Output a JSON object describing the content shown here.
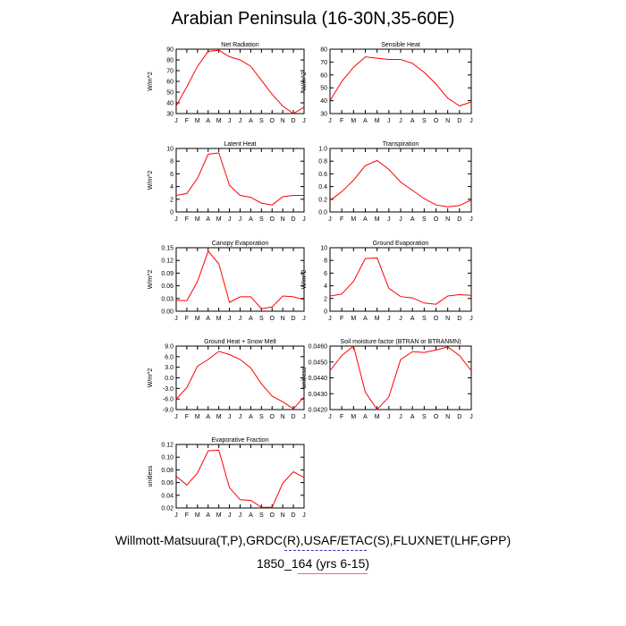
{
  "title": "Arabian Peninsula (16-30N,35-60E)",
  "caption_sources": "Willmott-Matsuura(T,P),GRDC(R),USAF/ETAC(S),FLUXNET(LHF,GPP)",
  "caption_case": "1850_164 (yrs 6-15)",
  "colors": {
    "line": "#ff0000",
    "axis": "#000000",
    "deco_blue": "#3333aa",
    "deco_red": "#ff6666"
  },
  "chart_data": [
    {
      "type": "line",
      "title": "Net Radiation",
      "ylabel": "W/m^2",
      "categories": [
        "J",
        "F",
        "M",
        "A",
        "M",
        "J",
        "J",
        "A",
        "S",
        "O",
        "N",
        "D",
        "J"
      ],
      "ylim": [
        30,
        90
      ],
      "yticks": [
        30,
        40,
        50,
        60,
        70,
        80,
        90
      ],
      "ytick_labels": [
        "30",
        "40",
        "50",
        "60",
        "70",
        "80",
        "90"
      ],
      "values": [
        37,
        55,
        74,
        88,
        89,
        83,
        80,
        74,
        61,
        48,
        37,
        30,
        36
      ]
    },
    {
      "type": "line",
      "title": "Sensible Heat",
      "ylabel": "W/m^2",
      "categories": [
        "J",
        "F",
        "M",
        "A",
        "M",
        "J",
        "J",
        "A",
        "S",
        "O",
        "N",
        "D",
        "J"
      ],
      "ylim": [
        30,
        80
      ],
      "yticks": [
        30,
        40,
        50,
        60,
        70,
        80
      ],
      "ytick_labels": [
        "30",
        "40",
        "50",
        "60",
        "70",
        "80"
      ],
      "values": [
        40,
        55,
        66,
        74,
        73,
        72,
        72,
        69,
        62,
        53,
        42,
        36,
        39
      ]
    },
    {
      "type": "line",
      "title": "Latent Heat",
      "ylabel": "W/m^2",
      "categories": [
        "J",
        "F",
        "M",
        "A",
        "M",
        "J",
        "J",
        "A",
        "S",
        "O",
        "N",
        "D",
        "J"
      ],
      "ylim": [
        0,
        10
      ],
      "yticks": [
        0,
        2,
        4,
        6,
        8,
        10
      ],
      "ytick_labels": [
        "0",
        "2",
        "4",
        "6",
        "8",
        "10"
      ],
      "values": [
        2.6,
        2.9,
        5.3,
        9.1,
        9.3,
        4.2,
        2.6,
        2.3,
        1.4,
        1.1,
        2.4,
        2.6,
        2.6
      ]
    },
    {
      "type": "line",
      "title": "Transpiration",
      "ylabel": "",
      "categories": [
        "J",
        "F",
        "M",
        "A",
        "M",
        "J",
        "J",
        "A",
        "S",
        "O",
        "N",
        "D",
        "J"
      ],
      "ylim": [
        0,
        1.0
      ],
      "yticks": [
        0,
        0.2,
        0.4,
        0.6,
        0.8,
        1.0
      ],
      "ytick_labels": [
        "0.0",
        "0.2",
        "0.4",
        "0.6",
        "0.8",
        "1.0"
      ],
      "values": [
        0.18,
        0.32,
        0.5,
        0.73,
        0.81,
        0.67,
        0.47,
        0.34,
        0.21,
        0.11,
        0.08,
        0.1,
        0.19
      ]
    },
    {
      "type": "line",
      "title": "Canopy Evaporation",
      "ylabel": "W/m^2",
      "categories": [
        "J",
        "F",
        "M",
        "A",
        "M",
        "J",
        "J",
        "A",
        "S",
        "O",
        "N",
        "D",
        "J"
      ],
      "ylim": [
        0,
        0.15
      ],
      "yticks": [
        0,
        0.03,
        0.06,
        0.09,
        0.12,
        0.15
      ],
      "ytick_labels": [
        "0.00",
        "0.03",
        "0.06",
        "0.09",
        "0.12",
        "0.15"
      ],
      "values": [
        0.026,
        0.025,
        0.07,
        0.142,
        0.112,
        0.021,
        0.034,
        0.034,
        0.006,
        0.01,
        0.036,
        0.034,
        0.027
      ]
    },
    {
      "type": "line",
      "title": "Ground Evaporation",
      "ylabel": "W/m^2",
      "categories": [
        "J",
        "F",
        "M",
        "A",
        "M",
        "J",
        "J",
        "A",
        "S",
        "O",
        "N",
        "D",
        "J"
      ],
      "ylim": [
        0,
        10
      ],
      "yticks": [
        0,
        2,
        4,
        6,
        8,
        10
      ],
      "ytick_labels": [
        "0",
        "2",
        "4",
        "6",
        "8",
        "10"
      ],
      "values": [
        2.4,
        2.7,
        4.7,
        8.3,
        8.4,
        3.6,
        2.3,
        2.1,
        1.3,
        1.1,
        2.4,
        2.6,
        2.5
      ]
    },
    {
      "type": "line",
      "title": "Ground Heat + Snow Melt",
      "ylabel": "W/m^2",
      "categories": [
        "J",
        "F",
        "M",
        "A",
        "M",
        "J",
        "J",
        "A",
        "S",
        "O",
        "N",
        "D",
        "J"
      ],
      "ylim": [
        -9,
        9
      ],
      "yticks": [
        -9,
        -6,
        -3,
        0,
        3,
        6,
        9
      ],
      "ytick_labels": [
        "-9.0",
        "-6.0",
        "-3.0",
        "0.0",
        "3.0",
        "6.0",
        "9.0"
      ],
      "values": [
        -6.0,
        -2.8,
        3.3,
        5.2,
        7.5,
        6.6,
        5.2,
        2.8,
        -1.7,
        -5.2,
        -6.8,
        -8.8,
        -5.4
      ]
    },
    {
      "type": "line",
      "title": "Soil moisture factor (BTRAN or BTRANMN)",
      "ylabel": "unitless",
      "categories": [
        "J",
        "F",
        "M",
        "A",
        "M",
        "J",
        "J",
        "A",
        "S",
        "O",
        "N",
        "D",
        "J"
      ],
      "ylim": [
        0.042,
        0.046
      ],
      "yticks": [
        0.042,
        0.043,
        0.044,
        0.045,
        0.046
      ],
      "ytick_labels": [
        "0.0420",
        "0.0430",
        "0.0440",
        "0.0450",
        "0.0460"
      ],
      "values": [
        0.04445,
        0.0454,
        0.046,
        0.0431,
        0.042,
        0.0428,
        0.04515,
        0.04565,
        0.0456,
        0.04575,
        0.04595,
        0.0454,
        0.04445
      ]
    },
    {
      "type": "line",
      "title": "Evaporative Fraction",
      "ylabel": "unitless",
      "categories": [
        "J",
        "F",
        "M",
        "A",
        "M",
        "J",
        "J",
        "A",
        "S",
        "O",
        "N",
        "D",
        "J"
      ],
      "ylim": [
        0.02,
        0.12
      ],
      "yticks": [
        0.02,
        0.04,
        0.06,
        0.08,
        0.1,
        0.12
      ],
      "ytick_labels": [
        "0.02",
        "0.04",
        "0.06",
        "0.08",
        "0.10",
        "0.12"
      ],
      "values": [
        0.07,
        0.056,
        0.075,
        0.11,
        0.111,
        0.052,
        0.033,
        0.032,
        0.021,
        0.021,
        0.059,
        0.077,
        0.068
      ]
    }
  ]
}
